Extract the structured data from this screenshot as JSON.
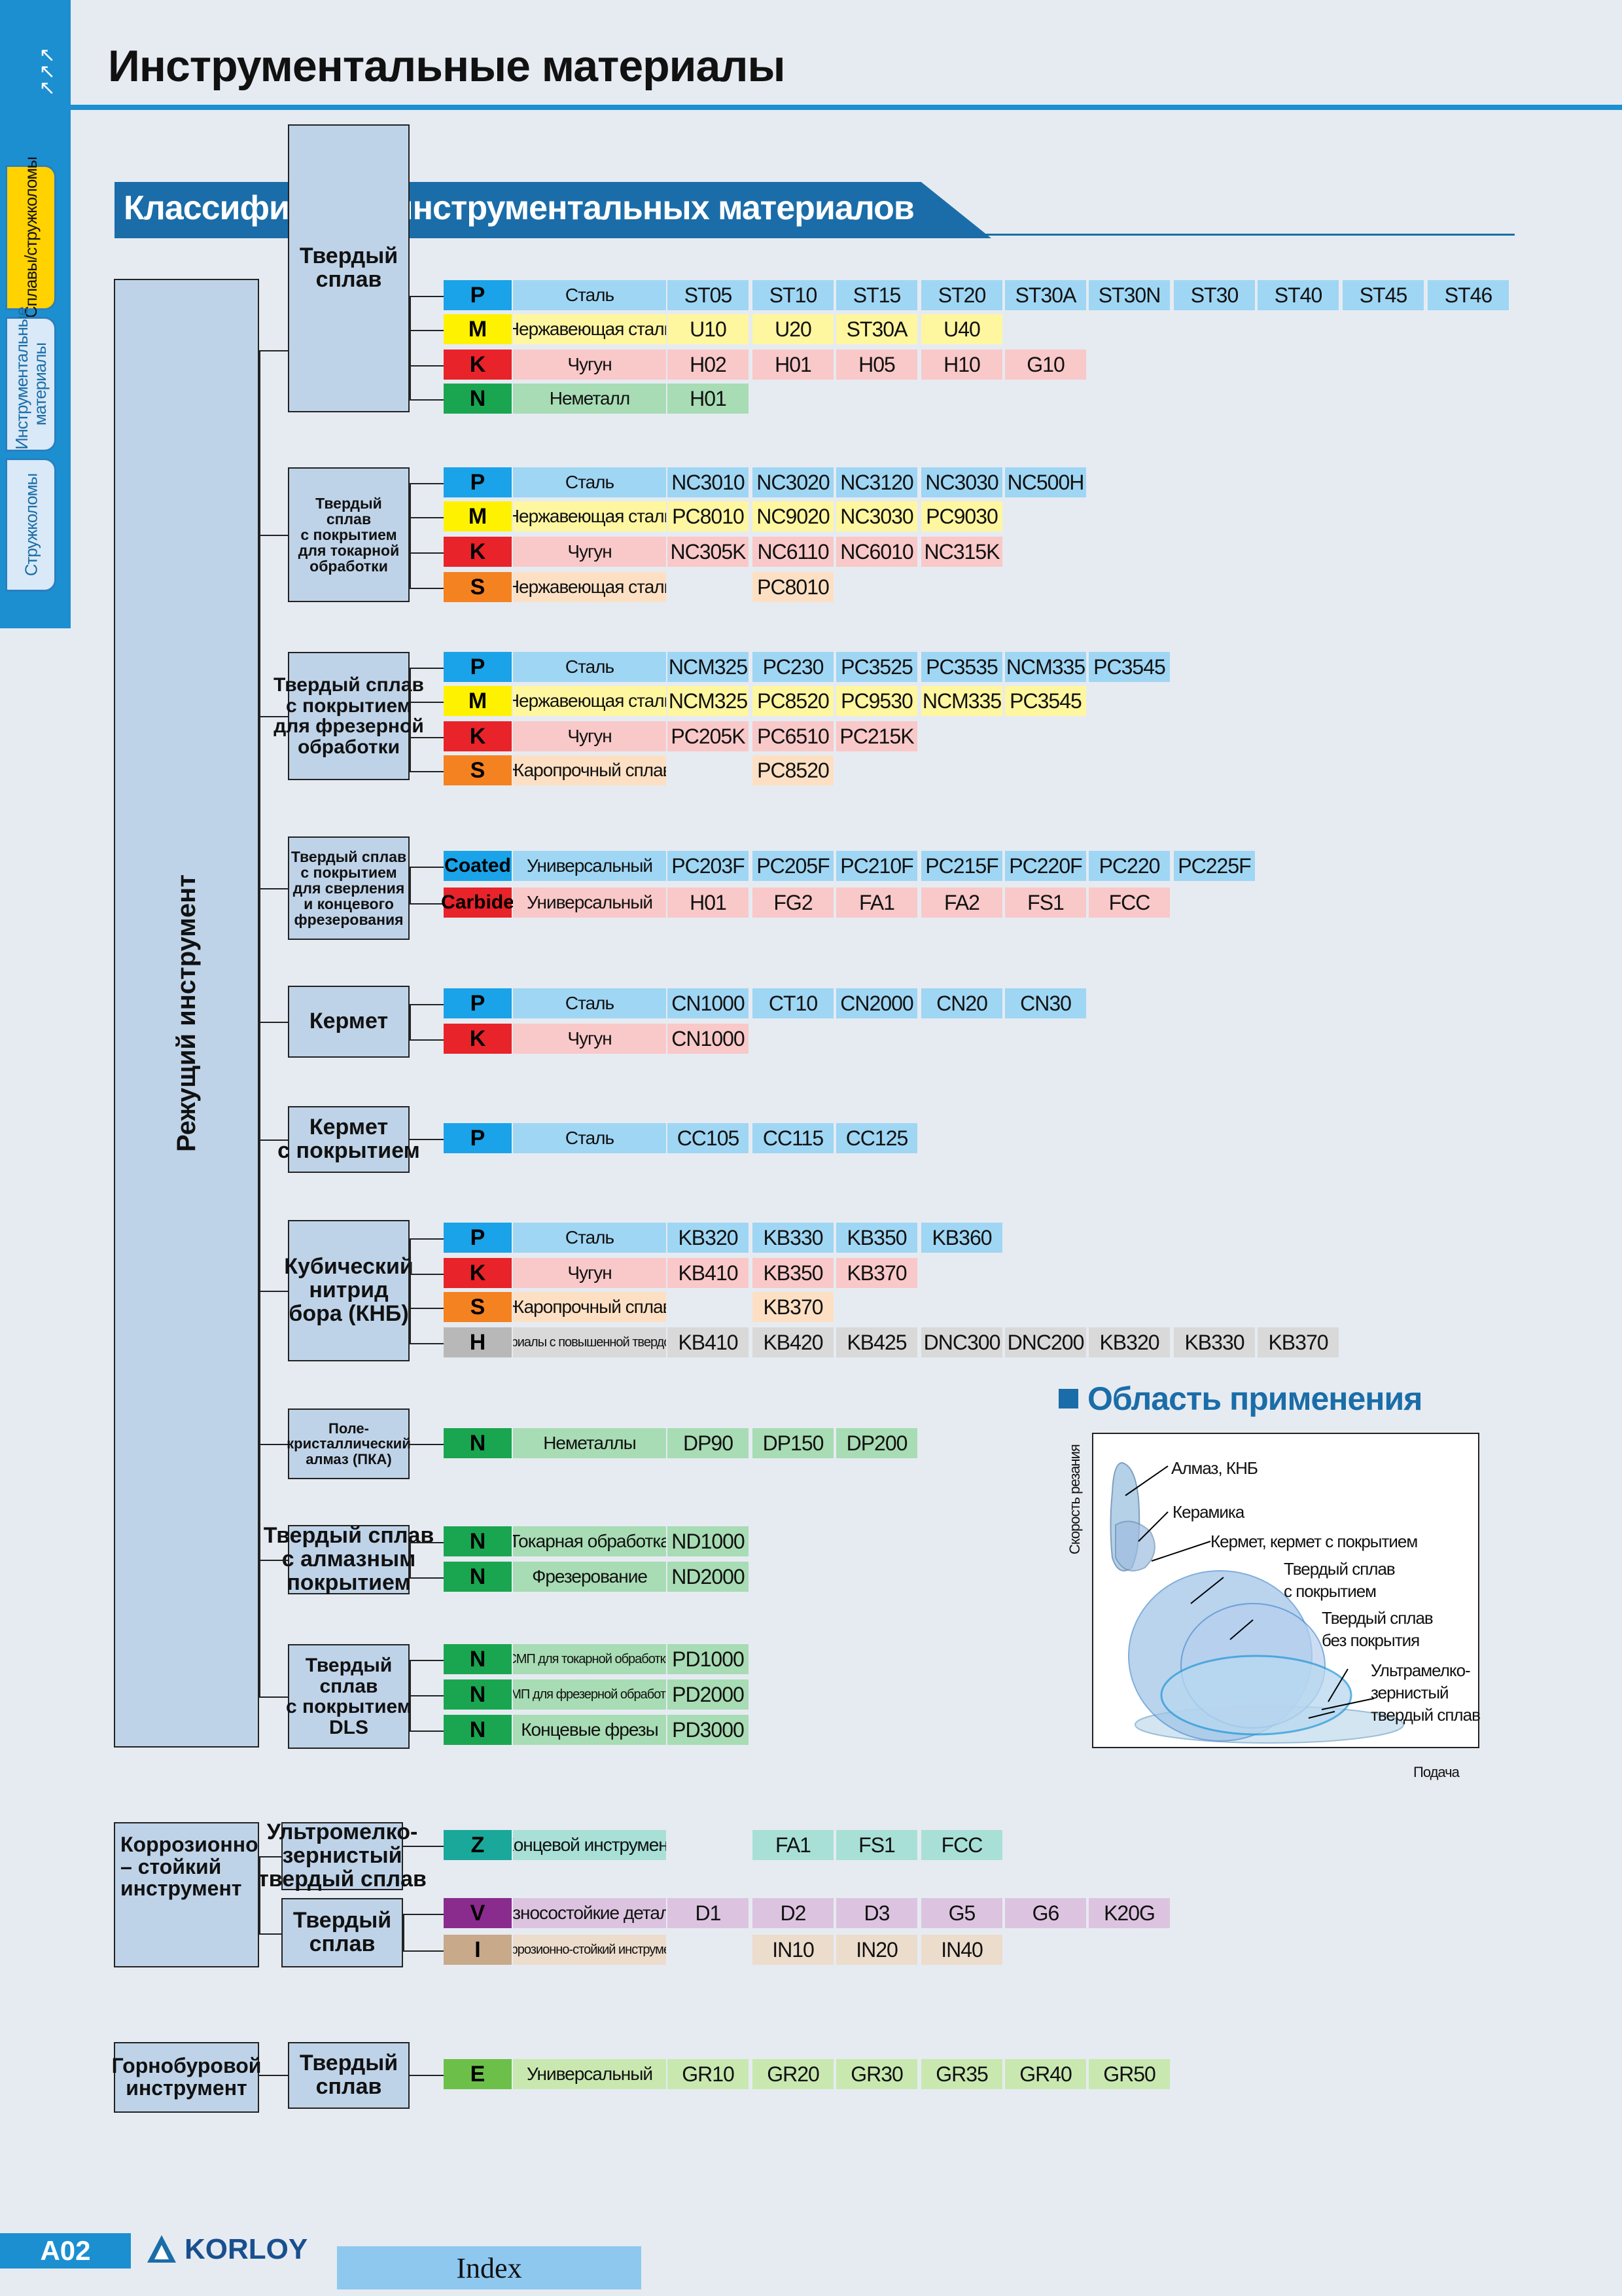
{
  "page": {
    "title": "Инструментальные материалы",
    "section_title": "Классификация инструментальных материалов",
    "page_number": "A02",
    "brand": "KORLOY",
    "index_label": "Index"
  },
  "side_tabs": [
    "Сплавы/стружколомы",
    "Инструментальные материалы",
    "Стружколомы"
  ],
  "side_arrows": "↙↙↙",
  "groups": {
    "cutting": "Режущий инструмент",
    "corrosion": "Коррозионно\n– стойкий\nинструмент",
    "mining": "Горнобуровой\nинструмент"
  },
  "colors": {
    "P": "#1aa3e8",
    "M": "#fff200",
    "K": "#e8232a",
    "N": "#1aa650",
    "S": "#f58220",
    "H": "#b8b8b8",
    "Z": "#1aa89a",
    "V": "#8a2b8e",
    "I": "#c8a98a",
    "E": "#6cc04a",
    "Coated": "#1aa3e8",
    "Carbide": "#e8232a"
  },
  "light": {
    "P": "#9fd6f4",
    "M": "#fff6a0",
    "K": "#f9c8c8",
    "N": "#a8dcb4",
    "S": "#fde0c4",
    "H": "#d9d9d9",
    "Z": "#a8e0d8",
    "V": "#dcc4e0",
    "I": "#ecdccc",
    "E": "#c8e8b0",
    "Coated": "#9fd6f4",
    "Carbide": "#f9c8c8"
  },
  "materials": [
    {
      "name": "Твердый\nсплав",
      "rows": [
        {
          "code": "P",
          "desc": "Сталь",
          "grades": [
            "ST05",
            "ST10",
            "ST15",
            "ST20",
            "ST30A",
            "ST30N",
            "ST30",
            "ST40",
            "ST45",
            "ST46"
          ]
        },
        {
          "code": "M",
          "desc": "Нержавеющая сталь",
          "grades": [
            "U10",
            "U20",
            "ST30A",
            "U40"
          ]
        },
        {
          "code": "K",
          "desc": "Чугун",
          "grades": [
            "H02",
            "H01",
            "H05",
            "H10",
            "G10"
          ]
        },
        {
          "code": "N",
          "desc": "Неметалл",
          "grades": [
            "H01"
          ]
        }
      ]
    },
    {
      "name": "Твердый\nсплав\nс покрытием\nдля токарной\nобработки",
      "rows": [
        {
          "code": "P",
          "desc": "Сталь",
          "grades": [
            "NC3010",
            "NC3020",
            "NC3120",
            "NC3030",
            "NC500H"
          ]
        },
        {
          "code": "M",
          "desc": "Нержавеющая сталь",
          "grades": [
            "PC8010",
            "NC9020",
            "NC3030",
            "PC9030"
          ]
        },
        {
          "code": "K",
          "desc": "Чугун",
          "grades": [
            "NC305K",
            "NC6110",
            "NC6010",
            "NC315K"
          ]
        },
        {
          "code": "S",
          "desc": "Нержавеющая сталь",
          "grades": [
            "",
            "PC8010"
          ]
        }
      ]
    },
    {
      "name": "Твердый сплав\nс покрытием\nдля фрезерной\nобработки",
      "rows": [
        {
          "code": "P",
          "desc": "Сталь",
          "grades": [
            "NCM325",
            "PC230",
            "PC3525",
            "PC3535",
            "NCM335",
            "PC3545"
          ]
        },
        {
          "code": "M",
          "desc": "Нержавеющая сталь",
          "grades": [
            "NCM325",
            "PC8520",
            "PC9530",
            "NCM335",
            "PC3545"
          ]
        },
        {
          "code": "K",
          "desc": "Чугун",
          "grades": [
            "PC205K",
            "PC6510",
            "PC215K"
          ]
        },
        {
          "code": "S",
          "desc": "Жаропрочный сплав",
          "grades": [
            "",
            "PC8520"
          ]
        }
      ]
    },
    {
      "name": "Твердый сплав\nс покрытием\nдля сверления\nи концевого\nфрезерования",
      "rows": [
        {
          "code": "Coated",
          "desc": "Универсальный",
          "grades": [
            "PC203F",
            "PC205F",
            "PC210F",
            "PC215F",
            "PC220F",
            "PC220",
            "PC225F"
          ]
        },
        {
          "code": "Carbide",
          "desc": "Универсальный",
          "grades": [
            "H01",
            "FG2",
            "FA1",
            "FA2",
            "FS1",
            "FCC"
          ]
        }
      ]
    },
    {
      "name": "Кермет",
      "rows": [
        {
          "code": "P",
          "desc": "Сталь",
          "grades": [
            "CN1000",
            "CT10",
            "CN2000",
            "CN20",
            "CN30"
          ]
        },
        {
          "code": "K",
          "desc": "Чугун",
          "grades": [
            "CN1000"
          ]
        }
      ]
    },
    {
      "name": "Кермет\nс покрытием",
      "rows": [
        {
          "code": "P",
          "desc": "Сталь",
          "grades": [
            "CC105",
            "CC115",
            "CC125"
          ]
        }
      ]
    },
    {
      "name": "Кубический\nнитрид\nбора (КНБ)",
      "rows": [
        {
          "code": "P",
          "desc": "Сталь",
          "grades": [
            "KB320",
            "KB330",
            "KB350",
            "KB360"
          ]
        },
        {
          "code": "K",
          "desc": "Чугун",
          "grades": [
            "KB410",
            "KB350",
            "KB370"
          ]
        },
        {
          "code": "S",
          "desc": "Жаропрочный сплав",
          "grades": [
            "",
            "KB370"
          ]
        },
        {
          "code": "H",
          "desc": "Материалы с повышенной твердостью",
          "grades": [
            "KB410",
            "KB420",
            "KB425",
            "DNC300",
            "DNC200",
            "KB320",
            "KB330",
            "KB370"
          ]
        }
      ]
    },
    {
      "name": "Поле-\nкристаллический\nалмаз (ПКА)",
      "rows": [
        {
          "code": "N",
          "desc": "Неметаллы",
          "grades": [
            "DP90",
            "DP150",
            "DP200"
          ]
        }
      ]
    },
    {
      "name": "Твердый сплав\nс алмазным\nпокрытием",
      "rows": [
        {
          "code": "N",
          "desc": "Токарная обработка",
          "grades": [
            "ND1000"
          ]
        },
        {
          "code": "N",
          "desc": "Фрезерование",
          "grades": [
            "ND2000"
          ]
        }
      ]
    },
    {
      "name": "Твердый\nсплав\nс покрытием\nDLS",
      "rows": [
        {
          "code": "N",
          "desc": "СМП для токарной обработки",
          "grades": [
            "PD1000"
          ]
        },
        {
          "code": "N",
          "desc": "СМП для фрезерной обработки",
          "grades": [
            "PD2000"
          ]
        },
        {
          "code": "N",
          "desc": "Концевые фрезы",
          "grades": [
            "PD3000"
          ]
        }
      ]
    },
    {
      "name": "Ультромелко-\nзернистый\nтвердый сплав",
      "rows": [
        {
          "code": "Z",
          "desc": "Концевой инструмент",
          "grades": [
            "",
            "FA1",
            "FS1",
            "FCC"
          ]
        }
      ]
    },
    {
      "name": "Твердый\nсплав",
      "rows": [
        {
          "code": "V",
          "desc": "Износостойкие детали",
          "grades": [
            "D1",
            "D2",
            "D3",
            "G5",
            "G6",
            "K20G"
          ]
        },
        {
          "code": "I",
          "desc": "Коррозионно-стойкий инструмент",
          "grades": [
            "",
            "IN10",
            "IN20",
            "IN40"
          ]
        }
      ]
    },
    {
      "name": "Твердый\nсплав",
      "rows": [
        {
          "code": "E",
          "desc": "Универсальный",
          "grades": [
            "GR10",
            "GR20",
            "GR30",
            "GR35",
            "GR40",
            "GR50"
          ]
        }
      ]
    }
  ],
  "application": {
    "title": "Область применения",
    "ylabel": "Скорость резания",
    "xlabel": "Подача",
    "labels": [
      "Алмаз, КНБ",
      "Керамика",
      "Кермет, кермет с покрытием",
      "Твердый сплав\nс покрытием",
      "Твердый сплав\nбез покрытия",
      "Ультрамелко-\nзернистый\nтвердый сплав"
    ]
  }
}
